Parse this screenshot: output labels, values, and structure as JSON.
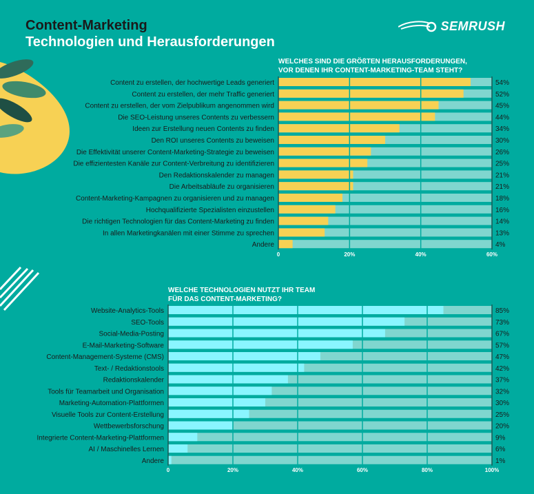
{
  "header": {
    "title_line1": "Content-Marketing",
    "title_line2": "Technologien und Herausforderungen",
    "logo": "SEMRUSH"
  },
  "colors": {
    "background": "#00ab9f",
    "challenges_bar": "#f7d154",
    "technologies_bar": "#8af5ff",
    "track": "#80d6cf"
  },
  "chart_data": [
    {
      "type": "bar",
      "orientation": "horizontal",
      "title": "WELCHES SIND DIE GRÖßTEN HERAUSFORDERUNGEN, VOR DENEN IHR CONTENT-MARKETING-TEAM STEHT?",
      "title_lines": [
        "WELCHES SIND DIE GRÖßTEN HERAUSFORDERUNGEN,",
        "VOR DENEN IHR CONTENT-MARKETING-TEAM STEHT?"
      ],
      "categories": [
        "Content zu erstellen, der hochwertige Leads generiert",
        "Content zu erstellen, der mehr Traffic generiert",
        "Content zu erstellen, der vom Zielpublikum angenommen wird",
        "Die SEO-Leistung unseres Contents zu verbessern",
        "Ideen zur Erstellung neuen Contents zu finden",
        "Den ROI unseres Contents zu beweisen",
        "Die Effektivität unserer Content-Marketing-Strategie zu beweisen",
        "Die effizientesten Kanäle zur Content-Verbreitung zu identifizieren",
        "Den Redaktionskalender zu managen",
        "Die Arbeitsabläufe zu organisieren",
        "Content-Marketing-Kampagnen zu organisieren und zu managen",
        "Hochqualifizierte Spezialisten einzustellen",
        "Die richtigen Technologien für das Content-Marketing zu finden",
        "In allen Marketingkanälen mit einer Stimme zu sprechen",
        "Andere"
      ],
      "values": [
        54,
        52,
        45,
        44,
        34,
        30,
        26,
        25,
        21,
        21,
        18,
        16,
        14,
        13,
        4
      ],
      "data_labels": [
        "54%",
        "52%",
        "45%",
        "44%",
        "34%",
        "30%",
        "26%",
        "25%",
        "21%",
        "21%",
        "18%",
        "16%",
        "14%",
        "13%",
        "4%"
      ],
      "xlim": [
        0,
        60
      ],
      "xticks": [
        "0",
        "20%",
        "40%",
        "60%"
      ],
      "grid": true
    },
    {
      "type": "bar",
      "orientation": "horizontal",
      "title": "WELCHE TECHNOLOGIEN NUTZT IHR TEAM FÜR DAS CONTENT-MARKETING?",
      "title_lines": [
        "WELCHE TECHNOLOGIEN NUTZT IHR TEAM",
        "FÜR DAS CONTENT-MARKETING?"
      ],
      "categories": [
        "Website-Analytics-Tools",
        "SEO-Tools",
        "Social-Media-Posting",
        "E-Mail-Marketing-Software",
        "Content-Management-Systeme (CMS)",
        "Text- / Redaktionstools",
        "Redaktionskalender",
        "Tools für Teamarbeit und Organisation",
        "Marketing-Automation-Plattformen",
        "Visuelle Tools zur Content-Erstellung",
        "Wettbewerbsforschung",
        "Integrierte Content-Marketing-Plattformen",
        "AI / Maschinelles Lernen",
        "Andere"
      ],
      "values": [
        85,
        73,
        67,
        57,
        47,
        42,
        37,
        32,
        30,
        25,
        20,
        9,
        6,
        1
      ],
      "data_labels": [
        "85%",
        "73%",
        "67%",
        "57%",
        "47%",
        "42%",
        "37%",
        "32%",
        "30%",
        "25%",
        "20%",
        "9%",
        "6%",
        "1%"
      ],
      "xlim": [
        0,
        100
      ],
      "xticks": [
        "0",
        "20%",
        "40%",
        "60%",
        "80%",
        "100%"
      ],
      "grid": true
    }
  ]
}
